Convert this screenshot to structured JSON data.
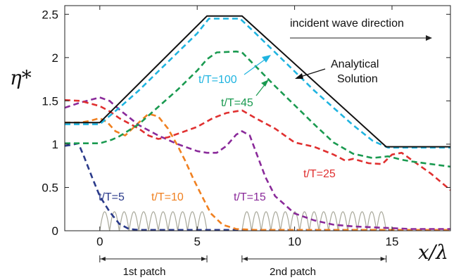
{
  "chart_data": {
    "type": "line",
    "title": "",
    "xlabel": "x/λ",
    "ylabel": "η*",
    "xlim": [
      -1.8,
      18
    ],
    "ylim": [
      0,
      2.6
    ],
    "x_ticks": [
      0,
      5,
      10,
      15
    ],
    "y_ticks": [
      0,
      0.5,
      1,
      1.5,
      2,
      2.5
    ],
    "x_tick_labels": [
      "0",
      "5",
      "10",
      "15"
    ],
    "y_tick_labels": [
      "0",
      "0.5",
      "1",
      "1.5",
      "2",
      "2.5"
    ],
    "grid": false,
    "series": [
      {
        "name": "Analytical Solution",
        "color": "#111111",
        "style": "solid",
        "x": [
          -1.8,
          0,
          5.5,
          7.3,
          14.7,
          18
        ],
        "y": [
          1.25,
          1.25,
          2.48,
          2.48,
          0.97,
          0.97
        ]
      },
      {
        "name": "t/T=100",
        "color": "#1fb4e0",
        "style": "dashed",
        "x": [
          -1.8,
          0,
          1,
          2,
          3,
          4,
          5,
          5.6,
          7.2,
          8,
          9,
          10,
          11,
          12,
          13,
          14,
          14.8,
          16,
          18
        ],
        "y": [
          1.23,
          1.23,
          1.42,
          1.62,
          1.84,
          2.06,
          2.28,
          2.45,
          2.45,
          2.28,
          2.06,
          1.84,
          1.62,
          1.42,
          1.22,
          1.04,
          0.96,
          0.96,
          0.96
        ]
      },
      {
        "name": "t/T=45",
        "color": "#1a9a50",
        "style": "dashed",
        "x": [
          -1.8,
          -1,
          0,
          0.6,
          1,
          2,
          3,
          4,
          5,
          5.5,
          6,
          7,
          7.3,
          8,
          9,
          10,
          11,
          12,
          13,
          14,
          14.8,
          15.5,
          16,
          17,
          18
        ],
        "y": [
          1.01,
          1.01,
          1.01,
          1.05,
          1.09,
          1.23,
          1.43,
          1.63,
          1.85,
          1.98,
          2.06,
          2.07,
          2.06,
          1.9,
          1.67,
          1.45,
          1.23,
          1.02,
          0.89,
          0.84,
          0.86,
          0.82,
          0.8,
          0.77,
          0.74
        ]
      },
      {
        "name": "t/T=25",
        "color": "#e03030",
        "style": "dashed",
        "x": [
          -1.8,
          -1,
          0,
          0.5,
          1,
          2,
          2.5,
          3,
          3.5,
          4,
          5,
          5.8,
          6.5,
          7,
          7.3,
          8,
          9,
          10,
          11,
          12,
          12.6,
          13,
          13.8,
          14.5,
          15,
          15.5,
          16,
          17,
          18
        ],
        "y": [
          1.51,
          1.5,
          1.44,
          1.38,
          1.3,
          1.18,
          1.1,
          1.06,
          1.08,
          1.12,
          1.2,
          1.3,
          1.36,
          1.38,
          1.39,
          1.3,
          1.18,
          1.02,
          0.97,
          0.88,
          0.81,
          0.83,
          0.78,
          0.77,
          0.88,
          0.9,
          0.82,
          0.66,
          0.47
        ]
      },
      {
        "name": "t/T=15",
        "color": "#8a2a9a",
        "style": "dashed",
        "x": [
          -1.8,
          -1,
          0,
          0.5,
          1,
          2,
          3,
          4,
          5,
          5.5,
          6,
          6.5,
          7,
          7.3,
          7.7,
          8,
          8.5,
          9,
          10,
          11,
          12,
          13,
          14,
          15,
          16,
          17,
          18
        ],
        "y": [
          1.42,
          1.48,
          1.54,
          1.5,
          1.4,
          1.22,
          1.1,
          1.0,
          0.92,
          0.9,
          0.9,
          0.98,
          1.11,
          1.15,
          1.1,
          0.92,
          0.62,
          0.4,
          0.2,
          0.12,
          0.07,
          0.05,
          0.04,
          0.03,
          0.02,
          0.02,
          0.02
        ]
      },
      {
        "name": "t/T=10",
        "color": "#f08020",
        "style": "dashed",
        "x": [
          -1.8,
          -1,
          -0.5,
          0,
          0.4,
          0.8,
          1.3,
          2,
          2.5,
          3,
          3.5,
          4,
          4.4,
          4.8,
          5.2,
          5.7,
          6.3,
          7,
          8,
          10,
          12,
          14,
          16,
          18
        ],
        "y": [
          1.25,
          1.25,
          1.27,
          1.3,
          1.25,
          1.15,
          1.1,
          1.25,
          1.35,
          1.32,
          1.18,
          0.98,
          0.8,
          0.6,
          0.42,
          0.2,
          0.07,
          0.02,
          0.01,
          0.01,
          0.01,
          0.01,
          0.01,
          0.01
        ]
      },
      {
        "name": "t/T=5",
        "color": "#2a3a8a",
        "style": "dashed",
        "x": [
          -1.8,
          -1.5,
          -1.1,
          -0.8,
          -0.4,
          0,
          0.5,
          1,
          1.5,
          2,
          3,
          5,
          8,
          12,
          16,
          18
        ],
        "y": [
          0.98,
          0.99,
          1.01,
          0.85,
          0.62,
          0.4,
          0.22,
          0.08,
          0.02,
          0.01,
          0.01,
          0.01,
          0.01,
          0.01,
          0.01,
          0.01
        ]
      }
    ],
    "bathymetry": {
      "color": "#a8a89a",
      "amplitude": 0.22,
      "patches": [
        {
          "label": "1st patch",
          "x_start": 0,
          "x_end": 5.5,
          "bumps": 11
        },
        {
          "label": "2nd patch",
          "x_start": 7.3,
          "x_end": 14.7,
          "bumps": 15
        }
      ]
    },
    "annotations": [
      {
        "text": "t/T=100",
        "color": "#1fb4e0"
      },
      {
        "text": "t/T=45",
        "color": "#1a9a50"
      },
      {
        "text": "t/T=25",
        "color": "#e03030"
      },
      {
        "text": "t/T=15",
        "color": "#8a2a9a"
      },
      {
        "text": "t/T=10",
        "color": "#f08020"
      },
      {
        "text": "t/T=5",
        "color": "#2a3a8a"
      },
      {
        "text": "Analytical",
        "color": "#111111"
      },
      {
        "text": "Solution",
        "color": "#111111"
      },
      {
        "text": "incident wave direction",
        "color": "#111111"
      }
    ]
  }
}
